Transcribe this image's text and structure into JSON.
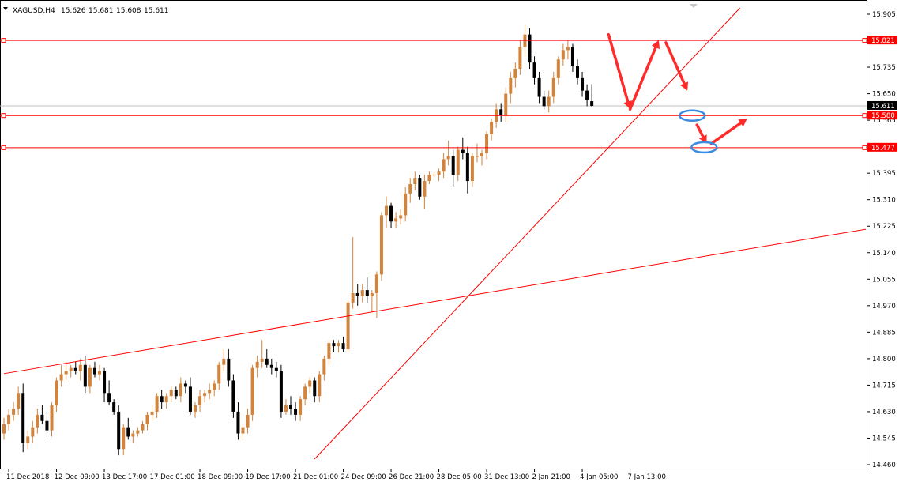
{
  "header": {
    "symbol": "XAGUSD,H4",
    "open": "15.626",
    "high": "15.681",
    "low": "15.608",
    "close": "15.611"
  },
  "colors": {
    "bull": "#d2843c",
    "bear": "#000000",
    "level": "#ff0000",
    "arrow": "#ff2a2a",
    "ellipse": "#3a8be0",
    "bid": "#c0c0c0"
  },
  "chart_data": {
    "type": "candlestick",
    "y_ticks": [
      "15.905",
      "15.820",
      "15.735",
      "15.650",
      "15.565",
      "15.480",
      "15.395",
      "15.310",
      "15.225",
      "15.140",
      "15.055",
      "14.970",
      "14.885",
      "14.800",
      "14.715",
      "14.630",
      "14.545",
      "14.460"
    ],
    "x_ticks": [
      "11 Dec 2018",
      "12 Dec 09:00",
      "13 Dec 17:00",
      "17 Dec 01:00",
      "18 Dec 09:00",
      "19 Dec 17:00",
      "21 Dec 01:00",
      "24 Dec 09:00",
      "26 Dec 21:00",
      "28 Dec 05:00",
      "31 Dec 13:00",
      "2 Jan 21:00",
      "4 Jan 05:00",
      "7 Jan 13:00"
    ],
    "ylim": [
      14.46,
      15.905
    ],
    "last_price": "15.611",
    "levels": [
      {
        "value": 15.821,
        "label": "15.821"
      },
      {
        "value": 15.58,
        "label": "15.580"
      },
      {
        "value": 15.477,
        "label": "15.477"
      }
    ],
    "trendlines": [
      {
        "from": [
          0,
          14.752
        ],
        "to": [
          183,
          15.222
        ]
      },
      {
        "from": [
          65,
          14.478
        ],
        "to": [
          154,
          15.925
        ]
      }
    ],
    "arrows": [
      {
        "from": [
          126.5,
          15.84
        ],
        "to": [
          131,
          15.6
        ]
      },
      {
        "from": [
          131,
          15.6
        ],
        "to": [
          137,
          15.822
        ]
      },
      {
        "from": [
          138.5,
          15.814
        ],
        "to": [
          143,
          15.66
        ]
      },
      {
        "from": [
          145,
          15.55
        ],
        "to": [
          147,
          15.49
        ]
      },
      {
        "from": [
          148,
          15.49
        ],
        "to": [
          155.5,
          15.57
        ]
      }
    ],
    "ellipses": [
      {
        "center": [
          144,
          15.58
        ]
      },
      {
        "center": [
          146.5,
          15.478
        ]
      }
    ],
    "candles": [
      {
        "o": 14.56,
        "h": 14.61,
        "l": 14.54,
        "c": 14.59
      },
      {
        "o": 14.59,
        "h": 14.64,
        "l": 14.57,
        "c": 14.62
      },
      {
        "o": 14.62,
        "h": 14.66,
        "l": 14.6,
        "c": 14.64
      },
      {
        "o": 14.64,
        "h": 14.71,
        "l": 14.62,
        "c": 14.69
      },
      {
        "o": 14.69,
        "h": 14.72,
        "l": 14.5,
        "c": 14.53
      },
      {
        "o": 14.53,
        "h": 14.57,
        "l": 14.51,
        "c": 14.55
      },
      {
        "o": 14.55,
        "h": 14.6,
        "l": 14.53,
        "c": 14.58
      },
      {
        "o": 14.58,
        "h": 14.64,
        "l": 14.56,
        "c": 14.62
      },
      {
        "o": 14.62,
        "h": 14.65,
        "l": 14.59,
        "c": 14.6
      },
      {
        "o": 14.6,
        "h": 14.63,
        "l": 14.55,
        "c": 14.57
      },
      {
        "o": 14.57,
        "h": 14.66,
        "l": 14.55,
        "c": 14.65
      },
      {
        "o": 14.65,
        "h": 14.74,
        "l": 14.63,
        "c": 14.73
      },
      {
        "o": 14.73,
        "h": 14.78,
        "l": 14.71,
        "c": 14.75
      },
      {
        "o": 14.75,
        "h": 14.79,
        "l": 14.73,
        "c": 14.76
      },
      {
        "o": 14.76,
        "h": 14.78,
        "l": 14.74,
        "c": 14.77
      },
      {
        "o": 14.77,
        "h": 14.79,
        "l": 14.75,
        "c": 14.76
      },
      {
        "o": 14.76,
        "h": 14.8,
        "l": 14.73,
        "c": 14.78
      },
      {
        "o": 14.78,
        "h": 14.81,
        "l": 14.69,
        "c": 14.71
      },
      {
        "o": 14.71,
        "h": 14.78,
        "l": 14.69,
        "c": 14.77
      },
      {
        "o": 14.77,
        "h": 14.79,
        "l": 14.74,
        "c": 14.75
      },
      {
        "o": 14.75,
        "h": 14.78,
        "l": 14.73,
        "c": 14.76
      },
      {
        "o": 14.76,
        "h": 14.77,
        "l": 14.66,
        "c": 14.69
      },
      {
        "o": 14.69,
        "h": 14.73,
        "l": 14.65,
        "c": 14.66
      },
      {
        "o": 14.66,
        "h": 14.67,
        "l": 14.62,
        "c": 14.63
      },
      {
        "o": 14.63,
        "h": 14.65,
        "l": 14.49,
        "c": 14.51
      },
      {
        "o": 14.51,
        "h": 14.59,
        "l": 14.49,
        "c": 14.58
      },
      {
        "o": 14.58,
        "h": 14.61,
        "l": 14.54,
        "c": 14.55
      },
      {
        "o": 14.55,
        "h": 14.57,
        "l": 14.53,
        "c": 14.56
      },
      {
        "o": 14.56,
        "h": 14.58,
        "l": 14.55,
        "c": 14.57
      },
      {
        "o": 14.57,
        "h": 14.6,
        "l": 14.56,
        "c": 14.59
      },
      {
        "o": 14.59,
        "h": 14.63,
        "l": 14.57,
        "c": 14.62
      },
      {
        "o": 14.62,
        "h": 14.65,
        "l": 14.6,
        "c": 14.63
      },
      {
        "o": 14.63,
        "h": 14.69,
        "l": 14.61,
        "c": 14.68
      },
      {
        "o": 14.68,
        "h": 14.7,
        "l": 14.64,
        "c": 14.66
      },
      {
        "o": 14.66,
        "h": 14.69,
        "l": 14.64,
        "c": 14.68
      },
      {
        "o": 14.68,
        "h": 14.71,
        "l": 14.66,
        "c": 14.7
      },
      {
        "o": 14.7,
        "h": 14.71,
        "l": 14.67,
        "c": 14.68
      },
      {
        "o": 14.68,
        "h": 14.74,
        "l": 14.66,
        "c": 14.72
      },
      {
        "o": 14.72,
        "h": 14.73,
        "l": 14.69,
        "c": 14.71
      },
      {
        "o": 14.71,
        "h": 14.74,
        "l": 14.62,
        "c": 14.63
      },
      {
        "o": 14.63,
        "h": 14.66,
        "l": 14.61,
        "c": 14.65
      },
      {
        "o": 14.65,
        "h": 14.7,
        "l": 14.63,
        "c": 14.68
      },
      {
        "o": 14.68,
        "h": 14.7,
        "l": 14.66,
        "c": 14.69
      },
      {
        "o": 14.69,
        "h": 14.72,
        "l": 14.67,
        "c": 14.7
      },
      {
        "o": 14.7,
        "h": 14.73,
        "l": 14.68,
        "c": 14.72
      },
      {
        "o": 14.72,
        "h": 14.79,
        "l": 14.7,
        "c": 14.78
      },
      {
        "o": 14.78,
        "h": 14.83,
        "l": 14.76,
        "c": 14.8
      },
      {
        "o": 14.8,
        "h": 14.83,
        "l": 14.71,
        "c": 14.73
      },
      {
        "o": 14.73,
        "h": 14.75,
        "l": 14.61,
        "c": 14.63
      },
      {
        "o": 14.63,
        "h": 14.66,
        "l": 14.54,
        "c": 14.56
      },
      {
        "o": 14.56,
        "h": 14.59,
        "l": 14.54,
        "c": 14.58
      },
      {
        "o": 14.58,
        "h": 14.64,
        "l": 14.56,
        "c": 14.62
      },
      {
        "o": 14.62,
        "h": 14.78,
        "l": 14.6,
        "c": 14.77
      },
      {
        "o": 14.77,
        "h": 14.81,
        "l": 14.74,
        "c": 14.79
      },
      {
        "o": 14.79,
        "h": 14.86,
        "l": 14.77,
        "c": 14.8
      },
      {
        "o": 14.8,
        "h": 14.83,
        "l": 14.77,
        "c": 14.78
      },
      {
        "o": 14.78,
        "h": 14.8,
        "l": 14.75,
        "c": 14.77
      },
      {
        "o": 14.77,
        "h": 14.79,
        "l": 14.74,
        "c": 14.76
      },
      {
        "o": 14.76,
        "h": 14.78,
        "l": 14.61,
        "c": 14.63
      },
      {
        "o": 14.63,
        "h": 14.67,
        "l": 14.62,
        "c": 14.65
      },
      {
        "o": 14.65,
        "h": 14.68,
        "l": 14.62,
        "c": 14.64
      },
      {
        "o": 14.64,
        "h": 14.66,
        "l": 14.6,
        "c": 14.62
      },
      {
        "o": 14.62,
        "h": 14.68,
        "l": 14.6,
        "c": 14.67
      },
      {
        "o": 14.67,
        "h": 14.72,
        "l": 14.65,
        "c": 14.71
      },
      {
        "o": 14.71,
        "h": 14.74,
        "l": 14.69,
        "c": 14.73
      },
      {
        "o": 14.73,
        "h": 14.74,
        "l": 14.66,
        "c": 14.68
      },
      {
        "o": 14.68,
        "h": 14.76,
        "l": 14.66,
        "c": 14.75
      },
      {
        "o": 14.75,
        "h": 14.81,
        "l": 14.73,
        "c": 14.8
      },
      {
        "o": 14.8,
        "h": 14.86,
        "l": 14.78,
        "c": 14.85
      },
      {
        "o": 14.85,
        "h": 14.86,
        "l": 14.82,
        "c": 14.84
      },
      {
        "o": 14.84,
        "h": 14.86,
        "l": 14.82,
        "c": 14.85
      },
      {
        "o": 14.85,
        "h": 14.87,
        "l": 14.82,
        "c": 14.83
      },
      {
        "o": 14.83,
        "h": 14.99,
        "l": 14.82,
        "c": 14.98
      },
      {
        "o": 14.98,
        "h": 15.19,
        "l": 14.96,
        "c": 15.01
      },
      {
        "o": 15.01,
        "h": 15.04,
        "l": 14.97,
        "c": 15.0
      },
      {
        "o": 15.0,
        "h": 15.04,
        "l": 14.98,
        "c": 15.02
      },
      {
        "o": 15.02,
        "h": 15.06,
        "l": 14.98,
        "c": 15.0
      },
      {
        "o": 15.0,
        "h": 15.02,
        "l": 14.95,
        "c": 15.01
      },
      {
        "o": 15.01,
        "h": 15.08,
        "l": 14.93,
        "c": 15.07
      },
      {
        "o": 15.07,
        "h": 15.27,
        "l": 15.05,
        "c": 15.26
      },
      {
        "o": 15.26,
        "h": 15.32,
        "l": 15.22,
        "c": 15.29
      },
      {
        "o": 15.29,
        "h": 15.3,
        "l": 15.22,
        "c": 15.24
      },
      {
        "o": 15.24,
        "h": 15.27,
        "l": 15.22,
        "c": 15.25
      },
      {
        "o": 15.25,
        "h": 15.28,
        "l": 15.23,
        "c": 15.26
      },
      {
        "o": 15.26,
        "h": 15.35,
        "l": 15.24,
        "c": 15.33
      },
      {
        "o": 15.33,
        "h": 15.38,
        "l": 15.3,
        "c": 15.36
      },
      {
        "o": 15.36,
        "h": 15.4,
        "l": 15.34,
        "c": 15.38
      },
      {
        "o": 15.38,
        "h": 15.39,
        "l": 15.31,
        "c": 15.32
      },
      {
        "o": 15.32,
        "h": 15.39,
        "l": 15.28,
        "c": 15.37
      },
      {
        "o": 15.37,
        "h": 15.4,
        "l": 15.36,
        "c": 15.39
      },
      {
        "o": 15.39,
        "h": 15.4,
        "l": 15.38,
        "c": 15.39
      },
      {
        "o": 15.39,
        "h": 15.41,
        "l": 15.37,
        "c": 15.4
      },
      {
        "o": 15.4,
        "h": 15.46,
        "l": 15.38,
        "c": 15.44
      },
      {
        "o": 15.44,
        "h": 15.5,
        "l": 15.42,
        "c": 15.45
      },
      {
        "o": 15.45,
        "h": 15.47,
        "l": 15.35,
        "c": 15.39
      },
      {
        "o": 15.39,
        "h": 15.48,
        "l": 15.37,
        "c": 15.47
      },
      {
        "o": 15.47,
        "h": 15.51,
        "l": 15.44,
        "c": 15.46
      },
      {
        "o": 15.46,
        "h": 15.48,
        "l": 15.33,
        "c": 15.37
      },
      {
        "o": 15.37,
        "h": 15.46,
        "l": 15.35,
        "c": 15.45
      },
      {
        "o": 15.45,
        "h": 15.49,
        "l": 15.43,
        "c": 15.45
      },
      {
        "o": 15.45,
        "h": 15.47,
        "l": 15.42,
        "c": 15.46
      },
      {
        "o": 15.46,
        "h": 15.53,
        "l": 15.44,
        "c": 15.52
      },
      {
        "o": 15.52,
        "h": 15.57,
        "l": 15.5,
        "c": 15.56
      },
      {
        "o": 15.56,
        "h": 15.62,
        "l": 15.54,
        "c": 15.6
      },
      {
        "o": 15.6,
        "h": 15.62,
        "l": 15.56,
        "c": 15.58
      },
      {
        "o": 15.58,
        "h": 15.67,
        "l": 15.56,
        "c": 15.65
      },
      {
        "o": 15.65,
        "h": 15.72,
        "l": 15.62,
        "c": 15.7
      },
      {
        "o": 15.7,
        "h": 15.75,
        "l": 15.67,
        "c": 15.73
      },
      {
        "o": 15.73,
        "h": 15.82,
        "l": 15.71,
        "c": 15.8
      },
      {
        "o": 15.8,
        "h": 15.87,
        "l": 15.77,
        "c": 15.84
      },
      {
        "o": 15.84,
        "h": 15.86,
        "l": 15.73,
        "c": 15.75
      },
      {
        "o": 15.75,
        "h": 15.77,
        "l": 15.68,
        "c": 15.7
      },
      {
        "o": 15.7,
        "h": 15.72,
        "l": 15.62,
        "c": 15.64
      },
      {
        "o": 15.64,
        "h": 15.66,
        "l": 15.6,
        "c": 15.61
      },
      {
        "o": 15.61,
        "h": 15.66,
        "l": 15.59,
        "c": 15.64
      },
      {
        "o": 15.64,
        "h": 15.72,
        "l": 15.62,
        "c": 15.7
      },
      {
        "o": 15.7,
        "h": 15.77,
        "l": 15.68,
        "c": 15.76
      },
      {
        "o": 15.76,
        "h": 15.81,
        "l": 15.74,
        "c": 15.79
      },
      {
        "o": 15.79,
        "h": 15.82,
        "l": 15.76,
        "c": 15.8
      },
      {
        "o": 15.8,
        "h": 15.81,
        "l": 15.72,
        "c": 15.74
      },
      {
        "o": 15.74,
        "h": 15.76,
        "l": 15.68,
        "c": 15.7
      },
      {
        "o": 15.7,
        "h": 15.72,
        "l": 15.64,
        "c": 15.66
      },
      {
        "o": 15.66,
        "h": 15.68,
        "l": 15.61,
        "c": 15.63
      },
      {
        "o": 15.626,
        "h": 15.681,
        "l": 15.608,
        "c": 15.611
      }
    ]
  }
}
